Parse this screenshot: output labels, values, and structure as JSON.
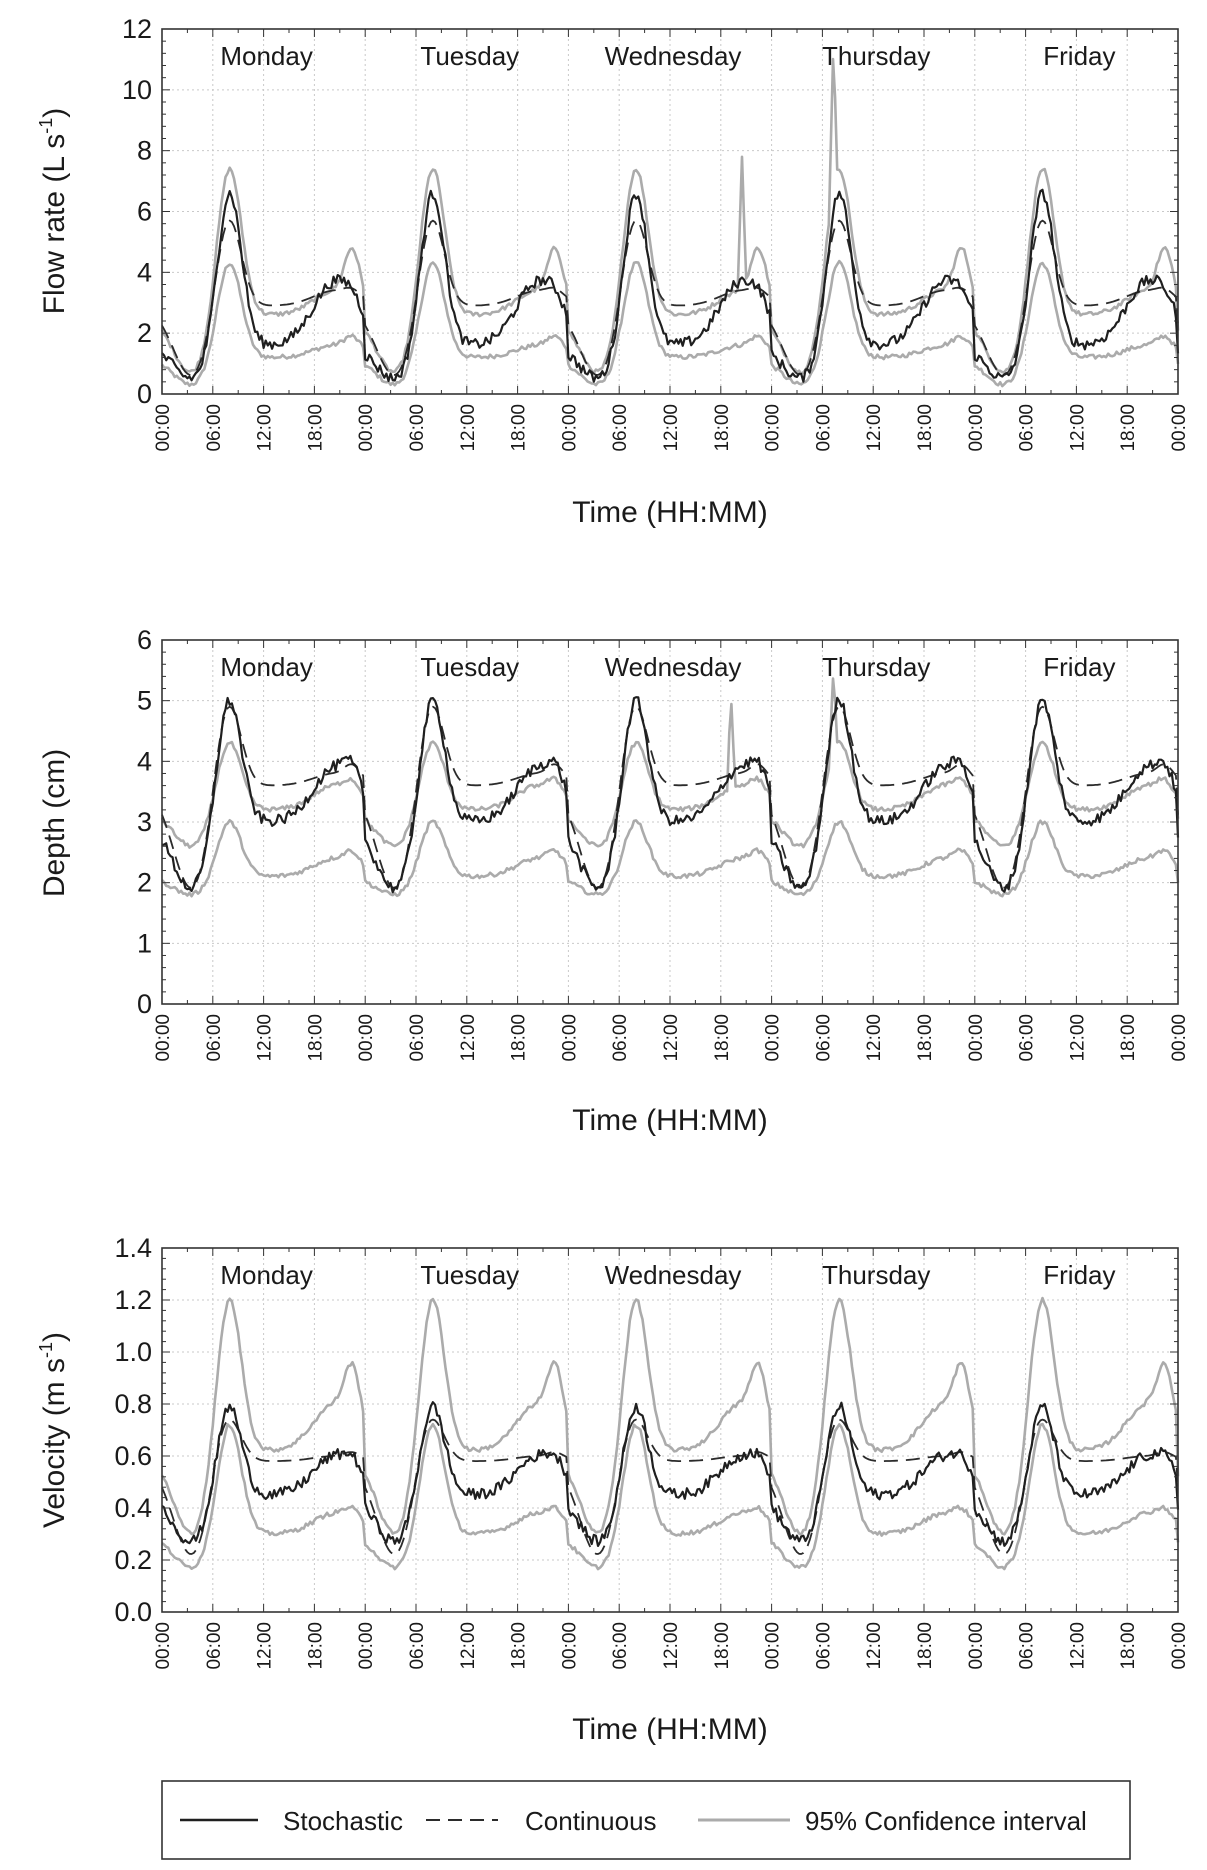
{
  "chart_data": [
    {
      "type": "line",
      "ylabel": "Flow rate (L s",
      "ylabel_sup": "-1",
      "ylabel_end": ")",
      "xlabel": "Time (HH:MM)",
      "ylim": [
        0,
        12
      ],
      "yticks": [
        "0",
        "2",
        "4",
        "6",
        "8",
        "10",
        "12"
      ],
      "xticks": [
        "00:00",
        "06:00",
        "12:00",
        "18:00",
        "00:00",
        "06:00",
        "12:00",
        "18:00",
        "00:00",
        "06:00",
        "12:00",
        "18:00",
        "00:00",
        "06:00",
        "12:00",
        "18:00",
        "00:00",
        "06:00",
        "12:00",
        "18:00",
        "00:00"
      ],
      "days": [
        "Monday",
        "Tuesday",
        "Wednesday",
        "Thursday",
        "Friday"
      ],
      "grid": true,
      "series": [
        {
          "name": "Stochastic",
          "key": "stochastic",
          "values": {
            "night": 0.5,
            "morning": 6.6,
            "dip": 1.6,
            "evening": 3.7,
            "evening_peak": 4.0
          }
        },
        {
          "name": "Continuous",
          "key": "continuous",
          "values": {
            "night": 0.6,
            "morning": 5.7,
            "dip": 2.9,
            "evening": 3.4,
            "evening_peak": 3.6
          }
        },
        {
          "name": "95% Confidence interval",
          "key": "upper",
          "values": {
            "night": 0.7,
            "morning": 7.4,
            "dip": 2.6,
            "evening": 3.4,
            "evening_peak": 5.0
          }
        },
        {
          "name": "95% Confidence interval",
          "key": "lower",
          "values": {
            "night": 0.3,
            "morning": 4.3,
            "dip": 1.2,
            "evening": 1.6,
            "evening_peak": 2.0
          }
        }
      ],
      "spikes": [
        {
          "series": "upper",
          "day": 3,
          "hour": 7.3,
          "value": 11.5
        },
        {
          "series": "upper",
          "day": 2,
          "hour": 20.5,
          "value": 7.8
        }
      ]
    },
    {
      "type": "line",
      "ylabel": "Depth (cm)",
      "xlabel": "Time (HH:MM)",
      "ylim": [
        0,
        6
      ],
      "yticks": [
        "0",
        "1",
        "2",
        "3",
        "4",
        "5",
        "6"
      ],
      "xticks": [
        "00:00",
        "06:00",
        "12:00",
        "18:00",
        "00:00",
        "06:00",
        "12:00",
        "18:00",
        "00:00",
        "06:00",
        "12:00",
        "18:00",
        "00:00",
        "06:00",
        "12:00",
        "18:00",
        "00:00",
        "06:00",
        "12:00",
        "18:00",
        "00:00"
      ],
      "days": [
        "Monday",
        "Tuesday",
        "Wednesday",
        "Thursday",
        "Friday"
      ],
      "grid": true,
      "series": [
        {
          "name": "Stochastic",
          "key": "stochastic",
          "values": {
            "night": 1.9,
            "morning": 5.0,
            "dip": 3.0,
            "evening": 3.9,
            "evening_peak": 4.2
          }
        },
        {
          "name": "Continuous",
          "key": "continuous",
          "values": {
            "night": 1.9,
            "morning": 4.9,
            "dip": 3.6,
            "evening": 3.8,
            "evening_peak": 4.0
          }
        },
        {
          "name": "95% Confidence interval",
          "key": "upper",
          "values": {
            "night": 2.6,
            "morning": 4.3,
            "dip": 3.2,
            "evening": 3.6,
            "evening_peak": 3.8
          }
        },
        {
          "name": "95% Confidence interval",
          "key": "lower",
          "values": {
            "night": 1.8,
            "morning": 3.0,
            "dip": 2.1,
            "evening": 2.4,
            "evening_peak": 2.6
          }
        }
      ],
      "spikes": [
        {
          "series": "upper",
          "day": 3,
          "hour": 7.3,
          "value": 5.5
        },
        {
          "series": "upper",
          "day": 2,
          "hour": 19.2,
          "value": 5.1
        }
      ]
    },
    {
      "type": "line",
      "ylabel": "Velocity (m s",
      "ylabel_sup": "-1",
      "ylabel_end": ")",
      "xlabel": "Time (HH:MM)",
      "ylim": [
        0,
        1.4
      ],
      "yticks": [
        "0.0",
        "0.2",
        "0.4",
        "0.6",
        "0.8",
        "1.0",
        "1.2",
        "1.4"
      ],
      "xticks": [
        "00:00",
        "06:00",
        "12:00",
        "18:00",
        "00:00",
        "06:00",
        "12:00",
        "18:00",
        "00:00",
        "06:00",
        "12:00",
        "18:00",
        "00:00",
        "06:00",
        "12:00",
        "18:00",
        "00:00",
        "06:00",
        "12:00",
        "18:00",
        "00:00"
      ],
      "days": [
        "Monday",
        "Tuesday",
        "Wednesday",
        "Thursday",
        "Friday"
      ],
      "grid": true,
      "series": [
        {
          "name": "Stochastic",
          "key": "stochastic",
          "values": {
            "night": 0.27,
            "morning": 0.79,
            "dip": 0.45,
            "evening": 0.6,
            "evening_peak": 0.64
          }
        },
        {
          "name": "Continuous",
          "key": "continuous",
          "values": {
            "night": 0.22,
            "morning": 0.74,
            "dip": 0.58,
            "evening": 0.6,
            "evening_peak": 0.62
          }
        },
        {
          "name": "95% Confidence interval",
          "key": "upper",
          "values": {
            "night": 0.3,
            "morning": 1.2,
            "dip": 0.62,
            "evening": 0.8,
            "evening_peak": 1.0
          }
        },
        {
          "name": "95% Confidence interval",
          "key": "lower",
          "values": {
            "night": 0.17,
            "morning": 0.72,
            "dip": 0.3,
            "evening": 0.38,
            "evening_peak": 0.42
          }
        }
      ],
      "spikes": []
    }
  ],
  "legend": {
    "items": [
      {
        "label": "Stochastic",
        "key": "stochastic"
      },
      {
        "label": "Continuous",
        "key": "continuous"
      },
      {
        "label": "95% Confidence interval",
        "key": "upper"
      }
    ]
  },
  "colors": {
    "stochastic": "#1f1f1f",
    "continuous": "#2b2b2b",
    "ci": "#ababab",
    "grid": "#c9c9c9",
    "axis": "#333333"
  }
}
